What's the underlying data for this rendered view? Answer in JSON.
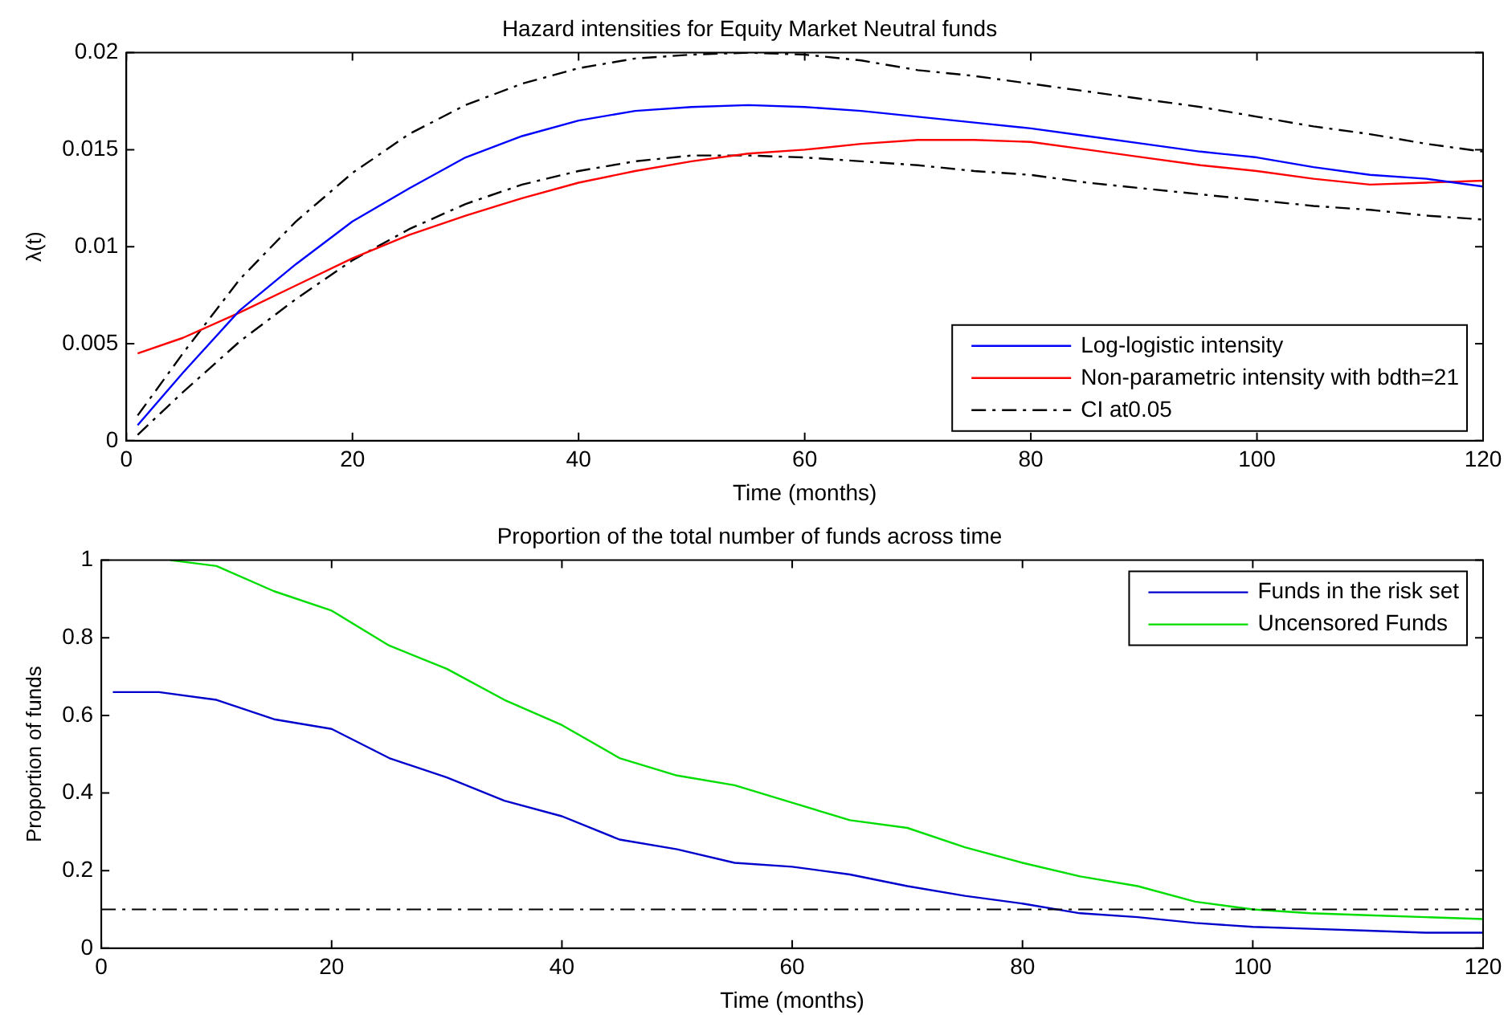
{
  "chart_data": [
    {
      "type": "line",
      "title": "Hazard intensities for Equity Market Neutral funds",
      "xlabel": "Time (months)",
      "ylabel": "λ(t)",
      "xlim": [
        0,
        120
      ],
      "xticks": [
        0,
        20,
        40,
        60,
        80,
        100,
        120
      ],
      "ylim": [
        0,
        0.02
      ],
      "yticks": [
        0,
        0.005,
        0.01,
        0.015,
        0.02
      ],
      "grid": false,
      "legend": "bottom right",
      "marker": "none",
      "x": [
        1,
        5,
        10,
        15,
        20,
        25,
        30,
        35,
        40,
        45,
        50,
        55,
        60,
        65,
        70,
        75,
        80,
        85,
        90,
        95,
        100,
        105,
        110,
        115,
        120
      ],
      "series": [
        {
          "name": "Log-logistic intensity",
          "color": "#0000ff",
          "line_style": "solid",
          "values": [
            0.0008,
            0.0035,
            0.0067,
            0.0091,
            0.0113,
            0.013,
            0.0146,
            0.0157,
            0.0165,
            0.017,
            0.0172,
            0.0173,
            0.0172,
            0.017,
            0.0167,
            0.0164,
            0.0161,
            0.0157,
            0.0153,
            0.0149,
            0.0146,
            0.0141,
            0.0137,
            0.0135,
            0.0131
          ]
        },
        {
          "name": "Non-parametric intensity with bdth=21",
          "color": "#ff0000",
          "line_style": "solid",
          "values": [
            0.0045,
            0.0053,
            0.0066,
            0.008,
            0.0094,
            0.0106,
            0.0116,
            0.0125,
            0.0133,
            0.0139,
            0.0144,
            0.0148,
            0.015,
            0.0153,
            0.0155,
            0.0155,
            0.0154,
            0.015,
            0.0146,
            0.0142,
            0.0139,
            0.0135,
            0.0132,
            0.0133,
            0.0134
          ]
        },
        {
          "name": "CI at0.05",
          "color": "#000000",
          "line_style": "dashed",
          "values": [
            0.0013,
            0.0045,
            0.0083,
            0.0113,
            0.0138,
            0.0158,
            0.0173,
            0.0184,
            0.0192,
            0.0197,
            0.0199,
            0.02,
            0.0199,
            0.0196,
            0.0191,
            0.0188,
            0.0184,
            0.018,
            0.0176,
            0.0172,
            0.0167,
            0.0162,
            0.0158,
            0.0153,
            0.0149
          ]
        },
        {
          "color": "#000000",
          "line_style": "dashed",
          "values": [
            0.0003,
            0.0025,
            0.0051,
            0.0073,
            0.0093,
            0.0109,
            0.0122,
            0.0132,
            0.0139,
            0.0144,
            0.0147,
            0.0147,
            0.0146,
            0.0144,
            0.0142,
            0.0139,
            0.0137,
            0.0133,
            0.013,
            0.0127,
            0.0124,
            0.0121,
            0.0119,
            0.0116,
            0.0114
          ]
        }
      ]
    },
    {
      "type": "line",
      "title": "Proportion of the total number of funds across time",
      "xlabel": "Time (months)",
      "ylabel": "Proportion of funds",
      "xlim": [
        0,
        120
      ],
      "xticks": [
        0,
        20,
        40,
        60,
        80,
        100,
        120
      ],
      "ylim": [
        0,
        1
      ],
      "yticks": [
        0,
        0.2,
        0.4,
        0.6,
        0.8,
        1
      ],
      "grid": false,
      "legend": "top right",
      "marker": "none",
      "series": [
        {
          "name": "Funds in the risk set",
          "color": "#0000cc",
          "x": [
            1,
            5,
            10,
            15,
            20,
            25,
            30,
            35,
            40,
            45,
            50,
            55,
            60,
            65,
            70,
            75,
            80,
            85,
            90,
            95,
            100,
            105,
            110,
            115,
            120
          ],
          "values": [
            0.66,
            0.66,
            0.64,
            0.59,
            0.565,
            0.49,
            0.44,
            0.38,
            0.34,
            0.28,
            0.255,
            0.22,
            0.21,
            0.19,
            0.16,
            0.135,
            0.115,
            0.09,
            0.08,
            0.065,
            0.055,
            0.05,
            0.045,
            0.04,
            0.04
          ]
        },
        {
          "name": "Uncensored Funds",
          "color": "#00dd00",
          "x": [
            6,
            10,
            15,
            20,
            25,
            30,
            35,
            40,
            45,
            50,
            55,
            60,
            65,
            70,
            75,
            80,
            85,
            90,
            95,
            100,
            105,
            110,
            115,
            120
          ],
          "values": [
            1,
            0.985,
            0.92,
            0.87,
            0.78,
            0.72,
            0.64,
            0.575,
            0.49,
            0.445,
            0.42,
            0.375,
            0.33,
            0.31,
            0.26,
            0.22,
            0.185,
            0.16,
            0.12,
            0.1,
            0.09,
            0.085,
            0.08,
            0.075
          ]
        }
      ],
      "ref_lines": [
        {
          "axis": "y",
          "value": 0.1,
          "color": "#000000",
          "line_style": "dashed"
        }
      ]
    }
  ]
}
